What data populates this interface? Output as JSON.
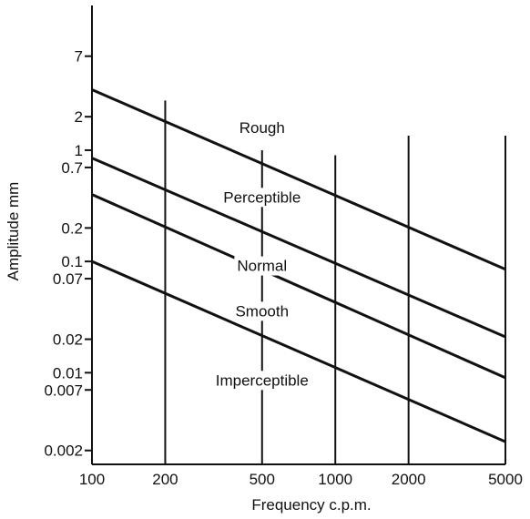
{
  "chart_data": {
    "type": "line",
    "title": "",
    "xlabel": "Frequency c.p.m.",
    "ylabel": "Amplitude mm",
    "x_scale": "log",
    "y_scale": "log",
    "xlim": [
      100,
      5000
    ],
    "ylim": [
      0.0015,
      20
    ],
    "x_ticks": [
      {
        "value": 100,
        "label": "100"
      },
      {
        "value": 200,
        "label": "200"
      },
      {
        "value": 500,
        "label": "500"
      },
      {
        "value": 1000,
        "label": "1000"
      },
      {
        "value": 2000,
        "label": "2000"
      },
      {
        "value": 5000,
        "label": "5000"
      }
    ],
    "y_ticks": [
      {
        "value": 7,
        "label": "7"
      },
      {
        "value": 2,
        "label": "2"
      },
      {
        "value": 1,
        "label": "1"
      },
      {
        "value": 0.7,
        "label": "0.7"
      },
      {
        "value": 0.2,
        "label": "0.2"
      },
      {
        "value": 0.1,
        "label": "0.1"
      },
      {
        "value": 0.07,
        "label": "0.07"
      },
      {
        "value": 0.02,
        "label": "0.02"
      },
      {
        "value": 0.01,
        "label": "0.01"
      },
      {
        "value": 0.007,
        "label": "0.007"
      },
      {
        "value": 0.002,
        "label": "0.002"
      }
    ],
    "vertical_gridlines": [
      {
        "x": 200,
        "y_top": 2.8
      },
      {
        "x": 500,
        "y_top": 1.0
      },
      {
        "x": 1000,
        "y_top": 0.9
      },
      {
        "x": 2000,
        "y_top": 1.35
      },
      {
        "x": 5000,
        "y_top": 1.35
      }
    ],
    "series": [
      {
        "values": [
          {
            "x": 100,
            "y": 3.5
          },
          {
            "x": 5000,
            "y": 0.085
          }
        ]
      },
      {
        "values": [
          {
            "x": 100,
            "y": 0.85
          },
          {
            "x": 5000,
            "y": 0.021
          }
        ]
      },
      {
        "values": [
          {
            "x": 100,
            "y": 0.4
          },
          {
            "x": 5000,
            "y": 0.009
          }
        ]
      },
      {
        "values": [
          {
            "x": 100,
            "y": 0.1
          },
          {
            "x": 5000,
            "y": 0.0024
          }
        ]
      }
    ],
    "zone_labels": [
      {
        "text": "Rough",
        "x": 500,
        "y": 1.6
      },
      {
        "text": "Perceptible",
        "x": 500,
        "y": 0.38
      },
      {
        "text": "Normal",
        "x": 500,
        "y": 0.092
      },
      {
        "text": "Smooth",
        "x": 500,
        "y": 0.036
      },
      {
        "text": "Imperceptible",
        "x": 500,
        "y": 0.0086
      }
    ]
  }
}
